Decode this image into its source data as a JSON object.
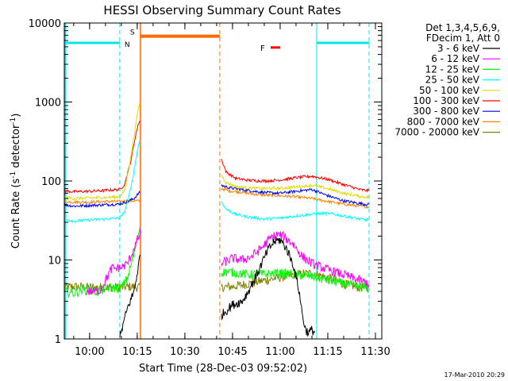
{
  "chart_data": {
    "type": "line",
    "title": "HESSI Observing Summary Count Rates",
    "xlabel": "Start Time (28-Dec-03 09:52:02)",
    "ylabel_main": "Count Rate (s",
    "ylabel_sup1": "-1",
    "ylabel_mid": " detector",
    "ylabel_sup2": "-1",
    "ylabel_end": ")",
    "y_scale": "log",
    "ylim": [
      1,
      10000
    ],
    "xlim": [
      "09:52:02",
      "11:32:00"
    ],
    "x_ticks": [
      "10:00",
      "10:15",
      "10:30",
      "10:45",
      "11:00",
      "11:15",
      "11:30"
    ],
    "y_ticks": [
      "1",
      "10",
      "100",
      "1000",
      "10000"
    ],
    "legend": {
      "placement": "right",
      "header_line1": "Det 1,3,4,5,6,9,",
      "header_line2": "FDecim 1, Att 0",
      "entries": [
        {
          "label": "3 - 6 keV",
          "color": "#000000"
        },
        {
          "label": "6 - 12 keV",
          "color": "#ff00ff"
        },
        {
          "label": "12 - 25 keV",
          "color": "#00ff00"
        },
        {
          "label": "25 - 50 keV",
          "color": "#00ffff"
        },
        {
          "label": "50 - 100 keV",
          "color": "#dddd00"
        },
        {
          "label": "100 - 300 keV",
          "color": "#ff0000"
        },
        {
          "label": "300 - 800 keV",
          "color": "#0000ff"
        },
        {
          "label": "800 - 7000 keV",
          "color": "#ff8000"
        },
        {
          "label": "7000 - 20000 keV",
          "color": "#808000"
        }
      ]
    },
    "flags": {
      "night_color": "#00e5e5",
      "saa_color": "#ff6a00",
      "flare_color": "#ff0000",
      "night_label": "N",
      "saa_label": "S",
      "flare_label": "F",
      "night_periods": [
        [
          "09:52:02",
          "10:09:30"
        ],
        [
          "11:11:30",
          "11:28:00"
        ]
      ],
      "saa_period": [
        "10:16:00",
        "10:41:00"
      ],
      "flare_bar": [
        "10:57:00",
        "11:00:00"
      ],
      "night_flag_level": 5600,
      "saa_flag_level": 6800,
      "flare_flag_level": 4900
    },
    "gap": [
      "10:16:00",
      "10:41:30"
    ],
    "series": [
      {
        "name": "3 - 6 keV",
        "color": "#000000",
        "points": [
          [
            "10:09:30",
            1
          ],
          [
            "10:10:30",
            1.5
          ],
          [
            "10:12:00",
            2.5
          ],
          [
            "10:14:00",
            4
          ],
          [
            "10:15:30",
            9
          ],
          [
            "10:16:00",
            12
          ],
          [
            "10:41:30",
            2
          ],
          [
            "10:45:00",
            2.7
          ],
          [
            "10:48:00",
            3
          ],
          [
            "10:50:00",
            4
          ],
          [
            "10:53:00",
            7
          ],
          [
            "10:56:00",
            13
          ],
          [
            "10:58:00",
            17
          ],
          [
            "11:00:00",
            18
          ],
          [
            "11:02:00",
            14
          ],
          [
            "11:04:00",
            9
          ],
          [
            "11:06:00",
            4
          ],
          [
            "11:07:00",
            2
          ],
          [
            "11:08:00",
            1.3
          ],
          [
            "11:09:00",
            1.2
          ],
          [
            "11:10:00",
            1.3
          ],
          [
            "11:11:00",
            1.2
          ]
        ]
      },
      {
        "name": "6 - 12 keV",
        "color": "#ff00ff",
        "points": [
          [
            "09:59:00",
            4
          ],
          [
            "10:01:00",
            4
          ],
          [
            "10:03:00",
            4
          ],
          [
            "10:07:00",
            7.8
          ],
          [
            "10:10:00",
            8
          ],
          [
            "10:12:00",
            9
          ],
          [
            "10:14:00",
            14
          ],
          [
            "10:16:00",
            22
          ],
          [
            "10:41:30",
            9
          ],
          [
            "10:45:00",
            10.5
          ],
          [
            "10:48:00",
            10
          ],
          [
            "10:51:00",
            11
          ],
          [
            "10:54:00",
            14
          ],
          [
            "10:57:00",
            19
          ],
          [
            "10:59:00",
            21
          ],
          [
            "11:01:00",
            20
          ],
          [
            "11:04:00",
            16
          ],
          [
            "11:07:00",
            11
          ],
          [
            "11:10:00",
            9
          ],
          [
            "11:15:00",
            7.5
          ],
          [
            "11:20:00",
            6.5
          ],
          [
            "11:25:00",
            5.5
          ],
          [
            "11:28:00",
            5
          ]
        ]
      },
      {
        "name": "12 - 25 keV",
        "color": "#00ff00",
        "points": [
          [
            "09:52:02",
            4
          ],
          [
            "09:55:00",
            3.8
          ],
          [
            "09:58:00",
            4.2
          ],
          [
            "10:02:00",
            4
          ],
          [
            "10:06:00",
            4.4
          ],
          [
            "10:10:00",
            4.4
          ],
          [
            "10:12:00",
            6
          ],
          [
            "10:14:00",
            12
          ],
          [
            "10:16:00",
            28
          ],
          [
            "10:41:30",
            7
          ],
          [
            "10:45:00",
            7
          ],
          [
            "10:50:00",
            6.5
          ],
          [
            "10:55:00",
            6.6
          ],
          [
            "11:00:00",
            6.8
          ],
          [
            "11:05:00",
            6.5
          ],
          [
            "11:10:00",
            6.2
          ],
          [
            "11:15:00",
            5.5
          ],
          [
            "11:20:00",
            5
          ],
          [
            "11:25:00",
            4.5
          ],
          [
            "11:28:00",
            4.5
          ]
        ]
      },
      {
        "name": "25 - 50 keV",
        "color": "#00ffff",
        "points": [
          [
            "09:52:02",
            33
          ],
          [
            "09:55:00",
            31
          ],
          [
            "10:00:00",
            32
          ],
          [
            "10:05:00",
            33
          ],
          [
            "10:09:30",
            34
          ],
          [
            "10:11:00",
            40
          ],
          [
            "10:13:00",
            80
          ],
          [
            "10:14:30",
            180
          ],
          [
            "10:15:30",
            300
          ],
          [
            "10:16:00",
            330
          ],
          [
            "10:41:30",
            55
          ],
          [
            "10:43:00",
            44
          ],
          [
            "10:46:00",
            38
          ],
          [
            "10:50:00",
            35
          ],
          [
            "10:55:00",
            33
          ],
          [
            "11:00:00",
            34
          ],
          [
            "11:05:00",
            36
          ],
          [
            "11:10:00",
            38
          ],
          [
            "11:15:00",
            39
          ],
          [
            "11:20:00",
            36
          ],
          [
            "11:25:00",
            33
          ],
          [
            "11:28:00",
            32
          ]
        ]
      },
      {
        "name": "50 - 100 keV",
        "color": "#dddd00",
        "points": [
          [
            "09:52:02",
            62
          ],
          [
            "09:55:00",
            60
          ],
          [
            "10:00:00",
            61
          ],
          [
            "10:05:00",
            62
          ],
          [
            "10:09:30",
            63
          ],
          [
            "10:11:00",
            75
          ],
          [
            "10:13:00",
            200
          ],
          [
            "10:14:30",
            500
          ],
          [
            "10:15:30",
            900
          ],
          [
            "10:16:00",
            1000
          ],
          [
            "10:41:30",
            120
          ],
          [
            "10:43:00",
            95
          ],
          [
            "10:46:00",
            85
          ],
          [
            "10:50:00",
            82
          ],
          [
            "10:55:00",
            80
          ],
          [
            "11:00:00",
            81
          ],
          [
            "11:05:00",
            84
          ],
          [
            "11:10:00",
            88
          ],
          [
            "11:15:00",
            80
          ],
          [
            "11:20:00",
            70
          ],
          [
            "11:25:00",
            64
          ],
          [
            "11:28:00",
            62
          ]
        ]
      },
      {
        "name": "100 - 300 keV",
        "color": "#ff0000",
        "points": [
          [
            "09:52:02",
            75
          ],
          [
            "09:55:00",
            73
          ],
          [
            "10:00:00",
            74
          ],
          [
            "10:05:00",
            76
          ],
          [
            "10:09:30",
            78
          ],
          [
            "10:11:00",
            90
          ],
          [
            "10:13:00",
            180
          ],
          [
            "10:14:30",
            380
          ],
          [
            "10:15:30",
            550
          ],
          [
            "10:16:00",
            600
          ],
          [
            "10:41:30",
            190
          ],
          [
            "10:43:00",
            130
          ],
          [
            "10:46:00",
            108
          ],
          [
            "10:50:00",
            102
          ],
          [
            "10:55:00",
            100
          ],
          [
            "11:00:00",
            103
          ],
          [
            "11:05:00",
            110
          ],
          [
            "11:10:00",
            115
          ],
          [
            "11:15:00",
            105
          ],
          [
            "11:20:00",
            90
          ],
          [
            "11:25:00",
            78
          ],
          [
            "11:28:00",
            75
          ]
        ]
      },
      {
        "name": "300 - 800 keV",
        "color": "#0000ff",
        "points": [
          [
            "09:52:02",
            50
          ],
          [
            "09:55:00",
            48
          ],
          [
            "10:00:00",
            49
          ],
          [
            "10:05:00",
            50
          ],
          [
            "10:09:30",
            51
          ],
          [
            "10:12:00",
            55
          ],
          [
            "10:14:00",
            60
          ],
          [
            "10:15:30",
            70
          ],
          [
            "10:16:00",
            72
          ],
          [
            "10:41:30",
            88
          ],
          [
            "10:44:00",
            82
          ],
          [
            "10:48:00",
            78
          ],
          [
            "10:52:00",
            74
          ],
          [
            "10:56:00",
            71
          ],
          [
            "11:00:00",
            70
          ],
          [
            "11:05:00",
            74
          ],
          [
            "11:10:00",
            78
          ],
          [
            "11:15:00",
            65
          ],
          [
            "11:20:00",
            56
          ],
          [
            "11:25:00",
            52
          ],
          [
            "11:28:00",
            50
          ]
        ]
      },
      {
        "name": "800 - 7000 keV",
        "color": "#ff8000",
        "points": [
          [
            "09:52:02",
            55
          ],
          [
            "09:55:00",
            54
          ],
          [
            "10:00:00",
            54
          ],
          [
            "10:05:00",
            55
          ],
          [
            "10:09:30",
            55
          ],
          [
            "10:13:00",
            56
          ],
          [
            "10:16:00",
            56
          ],
          [
            "10:41:30",
            80
          ],
          [
            "10:44:00",
            75
          ],
          [
            "10:48:00",
            72
          ],
          [
            "10:52:00",
            68
          ],
          [
            "10:56:00",
            66
          ],
          [
            "11:00:00",
            65
          ],
          [
            "11:05:00",
            63
          ],
          [
            "11:10:00",
            60
          ],
          [
            "11:15:00",
            55
          ],
          [
            "11:20:00",
            51
          ],
          [
            "11:25:00",
            48
          ],
          [
            "11:28:00",
            47
          ]
        ]
      },
      {
        "name": "7000 - 20000 keV",
        "color": "#808000",
        "points": [
          [
            "09:52:02",
            4.5
          ],
          [
            "09:55:00",
            4.6
          ],
          [
            "10:00:00",
            4.5
          ],
          [
            "10:05:00",
            4.5
          ],
          [
            "10:10:00",
            4.5
          ],
          [
            "10:13:00",
            4.6
          ],
          [
            "10:16:00",
            4.5
          ],
          [
            "10:41:30",
            4.5
          ],
          [
            "10:45:00",
            4.6
          ],
          [
            "10:50:00",
            5
          ],
          [
            "10:55:00",
            5.5
          ],
          [
            "11:00:00",
            6
          ],
          [
            "11:05:00",
            6.5
          ],
          [
            "11:10:00",
            6.8
          ],
          [
            "11:15:00",
            6
          ],
          [
            "11:20:00",
            5
          ],
          [
            "11:25:00",
            4.5
          ],
          [
            "11:28:00",
            4.4
          ]
        ]
      }
    ]
  },
  "footer": {
    "timestamp": "17-Mar-2010 20:29"
  }
}
